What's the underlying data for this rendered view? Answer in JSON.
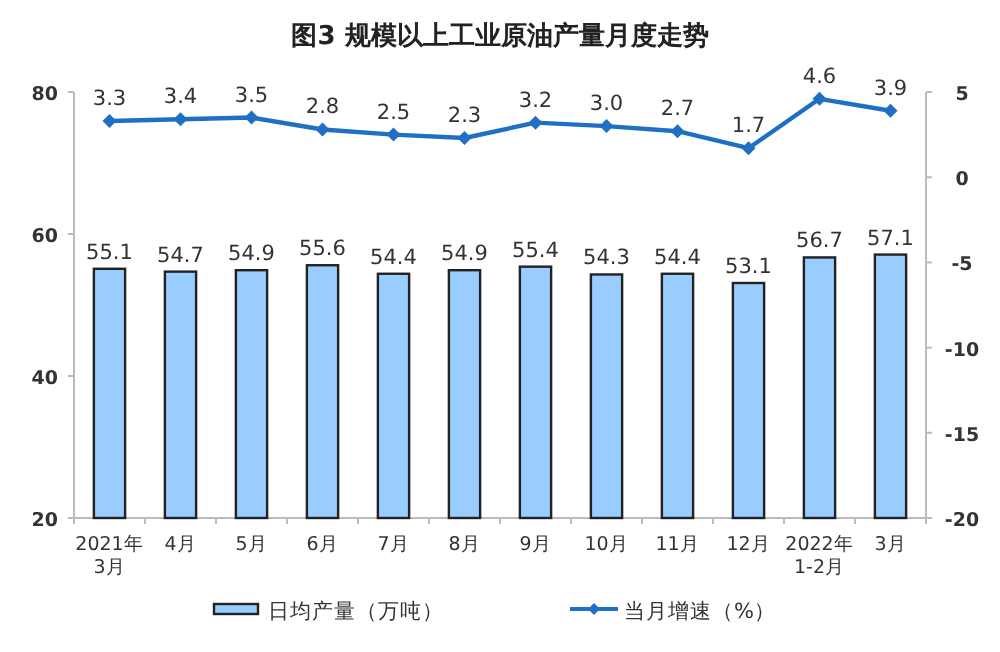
{
  "chart_data": {
    "type": "bar",
    "title": "图3  规模以上工业原油产量月度走势",
    "categories": [
      "2021年\n3月",
      "4月",
      "5月",
      "6月",
      "7月",
      "8月",
      "9月",
      "10月",
      "11月",
      "12月",
      "2022年\n1-2月",
      "3月"
    ],
    "series": [
      {
        "name": "日均产量（万吨）",
        "color": "#99ccff",
        "values": [
          55.1,
          54.7,
          54.9,
          55.6,
          54.4,
          54.9,
          55.4,
          54.3,
          54.4,
          53.1,
          56.7,
          57.1
        ],
        "value_labels": [
          "55.1",
          "54.7",
          "54.9",
          "55.6",
          "54.4",
          "54.9",
          "55.4",
          "54.3",
          "54.4",
          "53.1",
          "56.7",
          "57.1"
        ]
      },
      {
        "name": "当月增速（%）",
        "type": "line",
        "axis": "y2",
        "color": "#1f6fc5",
        "marker": "diamond",
        "values": [
          3.3,
          3.4,
          3.5,
          2.8,
          2.5,
          2.3,
          3.2,
          3.0,
          2.7,
          1.7,
          4.6,
          3.9
        ],
        "value_labels": [
          "3.3",
          "3.4",
          "3.5",
          "2.8",
          "2.5",
          "2.3",
          "3.2",
          "3.0",
          "2.7",
          "1.7",
          "4.6",
          "3.9"
        ]
      }
    ],
    "ylim": [
      20,
      80
    ],
    "yticks": [
      20,
      40,
      60,
      80
    ],
    "y2lim": [
      -20,
      5
    ],
    "y2ticks": [
      -20,
      -15,
      -10,
      -5,
      0,
      5
    ],
    "legend": "bottom"
  }
}
